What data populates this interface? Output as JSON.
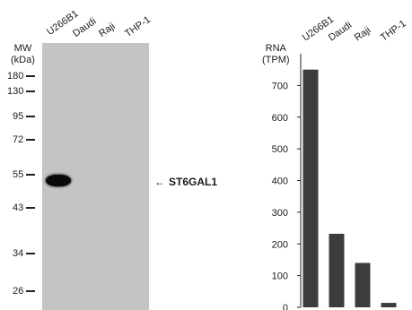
{
  "western_blot": {
    "mw_label": "MW",
    "mw_unit": "(kDa)",
    "lanes": [
      "U266B1",
      "Daudi",
      "Raji",
      "THP-1"
    ],
    "markers": [
      "180",
      "130",
      "95",
      "72",
      "55",
      "43",
      "34",
      "26"
    ],
    "target_label": "ST6GAL1",
    "arrow": "←"
  },
  "rna": {
    "title_line1": "RNA",
    "title_line2": "(TPM)"
  },
  "chart_data": {
    "type": "bar",
    "categories": [
      "U266B1",
      "Daudi",
      "Raji",
      "THP-1"
    ],
    "values": [
      750,
      232,
      140,
      14
    ],
    "title": "",
    "xlabel": "",
    "ylabel": "RNA (TPM)",
    "ylim": [
      0,
      800
    ],
    "yticks": [
      0,
      100,
      200,
      300,
      400,
      500,
      600,
      700
    ],
    "grid": false,
    "bar_color": "#3c3c3c"
  }
}
